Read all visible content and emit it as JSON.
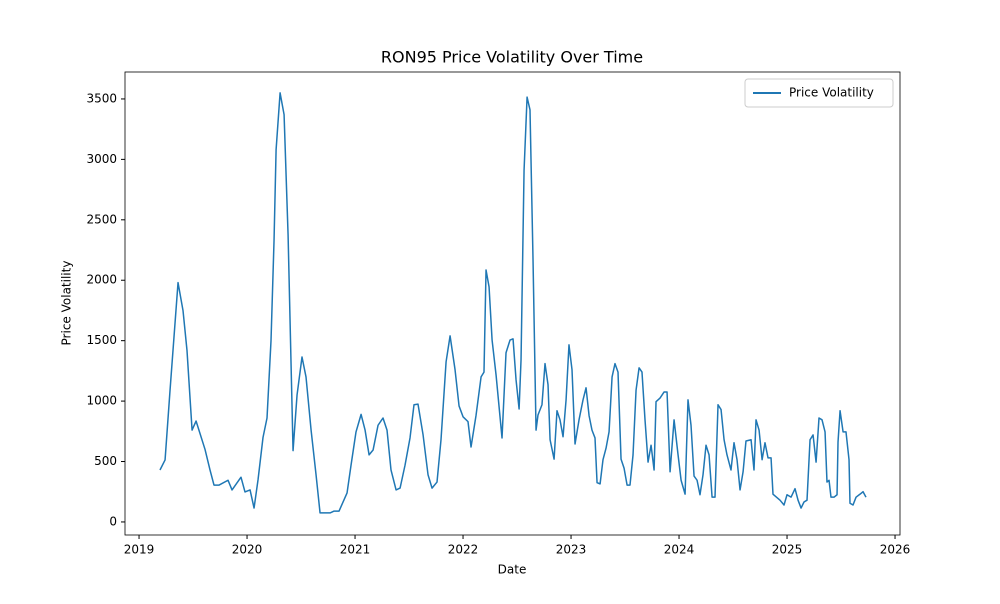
{
  "chart_data": {
    "type": "line",
    "title": "RON95 Price Volatility Over Time",
    "x_label": "Date",
    "y_label": "Price Volatility",
    "x": [
      2019.194,
      2019.241,
      2019.287,
      2019.361,
      2019.407,
      2019.444,
      2019.491,
      2019.528,
      2019.611,
      2019.657,
      2019.694,
      2019.741,
      2019.824,
      2019.861,
      2019.944,
      2019.981,
      2020.028,
      2020.065,
      2020.102,
      2020.148,
      2020.185,
      2020.222,
      2020.25,
      2020.269,
      2020.306,
      2020.343,
      2020.38,
      2020.426,
      2020.463,
      2020.509,
      2020.546,
      2020.593,
      2020.639,
      2020.676,
      2020.769,
      2020.806,
      2020.852,
      2020.926,
      2020.963,
      2021.009,
      2021.056,
      2021.093,
      2021.13,
      2021.167,
      2021.213,
      2021.259,
      2021.296,
      2021.333,
      2021.38,
      2021.417,
      2021.463,
      2021.509,
      2021.546,
      2021.583,
      2021.63,
      2021.676,
      2021.713,
      2021.759,
      2021.796,
      2021.843,
      2021.88,
      2021.926,
      2021.963,
      2022.0,
      2022.046,
      2022.074,
      2022.12,
      2022.167,
      2022.194,
      2022.213,
      2022.241,
      2022.269,
      2022.306,
      2022.361,
      2022.398,
      2022.435,
      2022.463,
      2022.491,
      2022.519,
      2022.537,
      2022.565,
      2022.593,
      2022.62,
      2022.648,
      2022.676,
      2022.694,
      2022.731,
      2022.759,
      2022.787,
      2022.806,
      2022.843,
      2022.87,
      2022.898,
      2022.926,
      2022.954,
      2022.981,
      2023.009,
      2023.037,
      2023.074,
      2023.111,
      2023.139,
      2023.167,
      2023.194,
      2023.222,
      2023.241,
      2023.269,
      2023.296,
      2023.324,
      2023.352,
      2023.38,
      2023.407,
      2023.435,
      2023.463,
      2023.491,
      2023.519,
      2023.546,
      2023.574,
      2023.602,
      2023.63,
      2023.657,
      2023.685,
      2023.713,
      2023.741,
      2023.769,
      2023.787,
      2023.824,
      2023.861,
      2023.889,
      2023.917,
      2023.954,
      2023.991,
      2024.019,
      2024.056,
      2024.083,
      2024.111,
      2024.139,
      2024.167,
      2024.194,
      2024.222,
      2024.25,
      2024.278,
      2024.306,
      2024.333,
      2024.361,
      2024.389,
      2024.417,
      2024.444,
      2024.481,
      2024.509,
      2024.537,
      2024.565,
      2024.593,
      2024.62,
      2024.667,
      2024.694,
      2024.713,
      2024.741,
      2024.769,
      2024.796,
      2024.824,
      2024.852,
      2024.87,
      2024.935,
      2024.972,
      2025.0,
      2025.037,
      2025.074,
      2025.102,
      2025.13,
      2025.157,
      2025.185,
      2025.213,
      2025.241,
      2025.269,
      2025.296,
      2025.324,
      2025.352,
      2025.37,
      2025.389,
      2025.407,
      2025.435,
      2025.463,
      2025.472,
      2025.491,
      2025.519,
      2025.546,
      2025.574,
      2025.583,
      2025.611,
      2025.639,
      2025.676,
      2025.704,
      2025.731
    ],
    "series": [
      {
        "name": "Price Volatility",
        "color": "#1f77b4",
        "values": [
          430,
          513,
          1090,
          1980,
          1750,
          1420,
          760,
          835,
          600,
          430,
          305,
          305,
          345,
          265,
          370,
          248,
          265,
          115,
          350,
          700,
          860,
          1500,
          2330,
          3080,
          3550,
          3370,
          2375,
          590,
          1050,
          1365,
          1200,
          760,
          390,
          75,
          75,
          90,
          90,
          240,
          470,
          745,
          890,
          760,
          555,
          595,
          800,
          860,
          760,
          430,
          265,
          280,
          470,
          695,
          970,
          975,
          720,
          390,
          280,
          330,
          680,
          1325,
          1540,
          1260,
          960,
          870,
          830,
          620,
          880,
          1200,
          1240,
          2085,
          1945,
          1505,
          1215,
          695,
          1400,
          1505,
          1515,
          1175,
          935,
          1340,
          2910,
          3515,
          3410,
          2170,
          760,
          885,
          970,
          1310,
          1135,
          680,
          520,
          920,
          845,
          705,
          1010,
          1465,
          1260,
          645,
          845,
          1010,
          1110,
          880,
          760,
          695,
          325,
          315,
          515,
          610,
          745,
          1200,
          1310,
          1240,
          520,
          445,
          305,
          305,
          555,
          1090,
          1275,
          1240,
          845,
          495,
          635,
          430,
          995,
          1025,
          1075,
          1075,
          415,
          845,
          555,
          345,
          230,
          1010,
          800,
          380,
          345,
          225,
          390,
          635,
          555,
          205,
          205,
          970,
          930,
          680,
          555,
          430,
          655,
          515,
          265,
          415,
          670,
          680,
          430,
          845,
          760,
          515,
          655,
          530,
          530,
          230,
          180,
          140,
          225,
          205,
          275,
          180,
          115,
          165,
          180,
          680,
          720,
          495,
          860,
          845,
          745,
          330,
          345,
          205,
          205,
          225,
          660,
          920,
          745,
          745,
          515,
          155,
          140,
          205,
          230,
          250,
          205
        ]
      }
    ],
    "xlim": [
      2018.87,
      2026.046
    ],
    "ylim": [
      -108,
      3723
    ],
    "xticks": [
      2019,
      2020,
      2021,
      2022,
      2023,
      2024,
      2025,
      2026
    ],
    "yticks": [
      0,
      500,
      1000,
      1500,
      2000,
      2500,
      3000,
      3500
    ],
    "legend": "upper right",
    "grid": false
  }
}
